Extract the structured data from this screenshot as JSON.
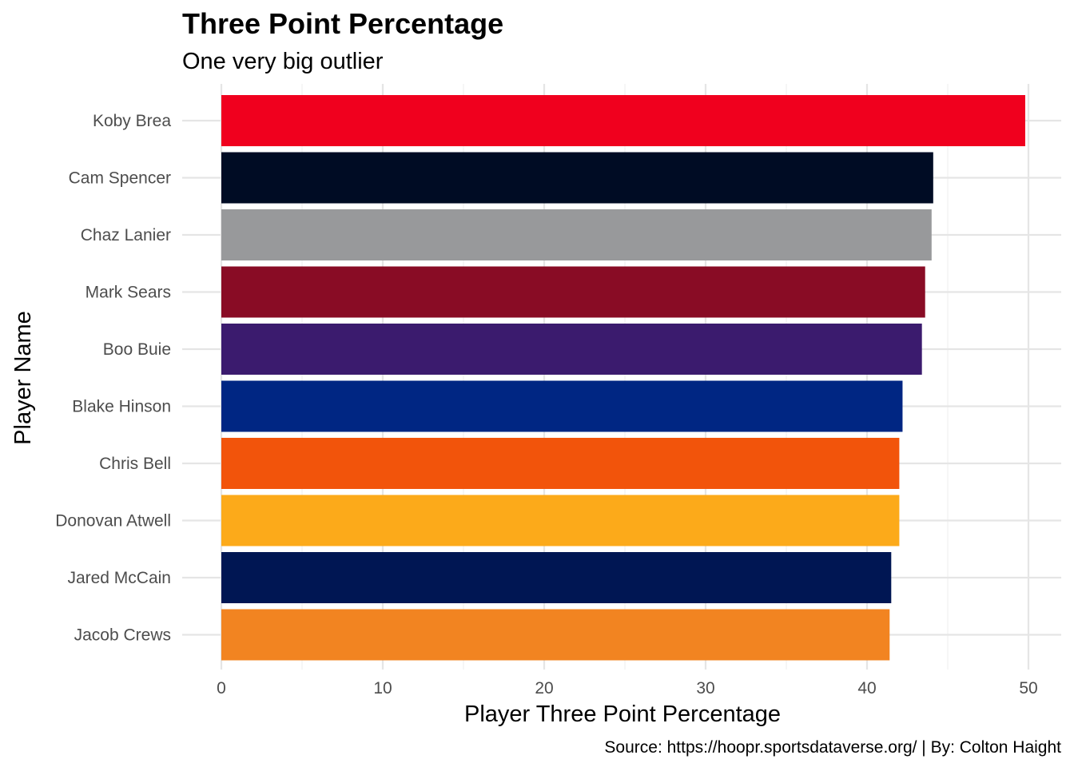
{
  "chart_data": {
    "type": "bar",
    "orientation": "horizontal",
    "title": "Three Point Percentage",
    "subtitle": "One very big outlier",
    "xlabel": "Player Three Point Percentage",
    "ylabel": "Player Name",
    "caption": "Source: https://hoopr.sportsdataverse.org/ | By: Colton Haight",
    "xlim": [
      0,
      52
    ],
    "xticks": [
      0,
      10,
      20,
      30,
      40,
      50
    ],
    "grid": true,
    "legend": "none",
    "categories": [
      "Koby Brea",
      "Cam Spencer",
      "Chaz Lanier",
      "Mark Sears",
      "Boo Buie",
      "Blake Hinson",
      "Chris Bell",
      "Donovan Atwell",
      "Jared McCain",
      "Jacob Crews"
    ],
    "values": [
      49.8,
      44.1,
      44.0,
      43.6,
      43.4,
      42.2,
      42.0,
      42.0,
      41.5,
      41.4
    ],
    "colors": [
      "#F0001E",
      "#000C24",
      "#98999B",
      "#890C25",
      "#3B1B6E",
      "#002683",
      "#F2540B",
      "#FCAA1A",
      "#001653",
      "#F28421"
    ]
  }
}
